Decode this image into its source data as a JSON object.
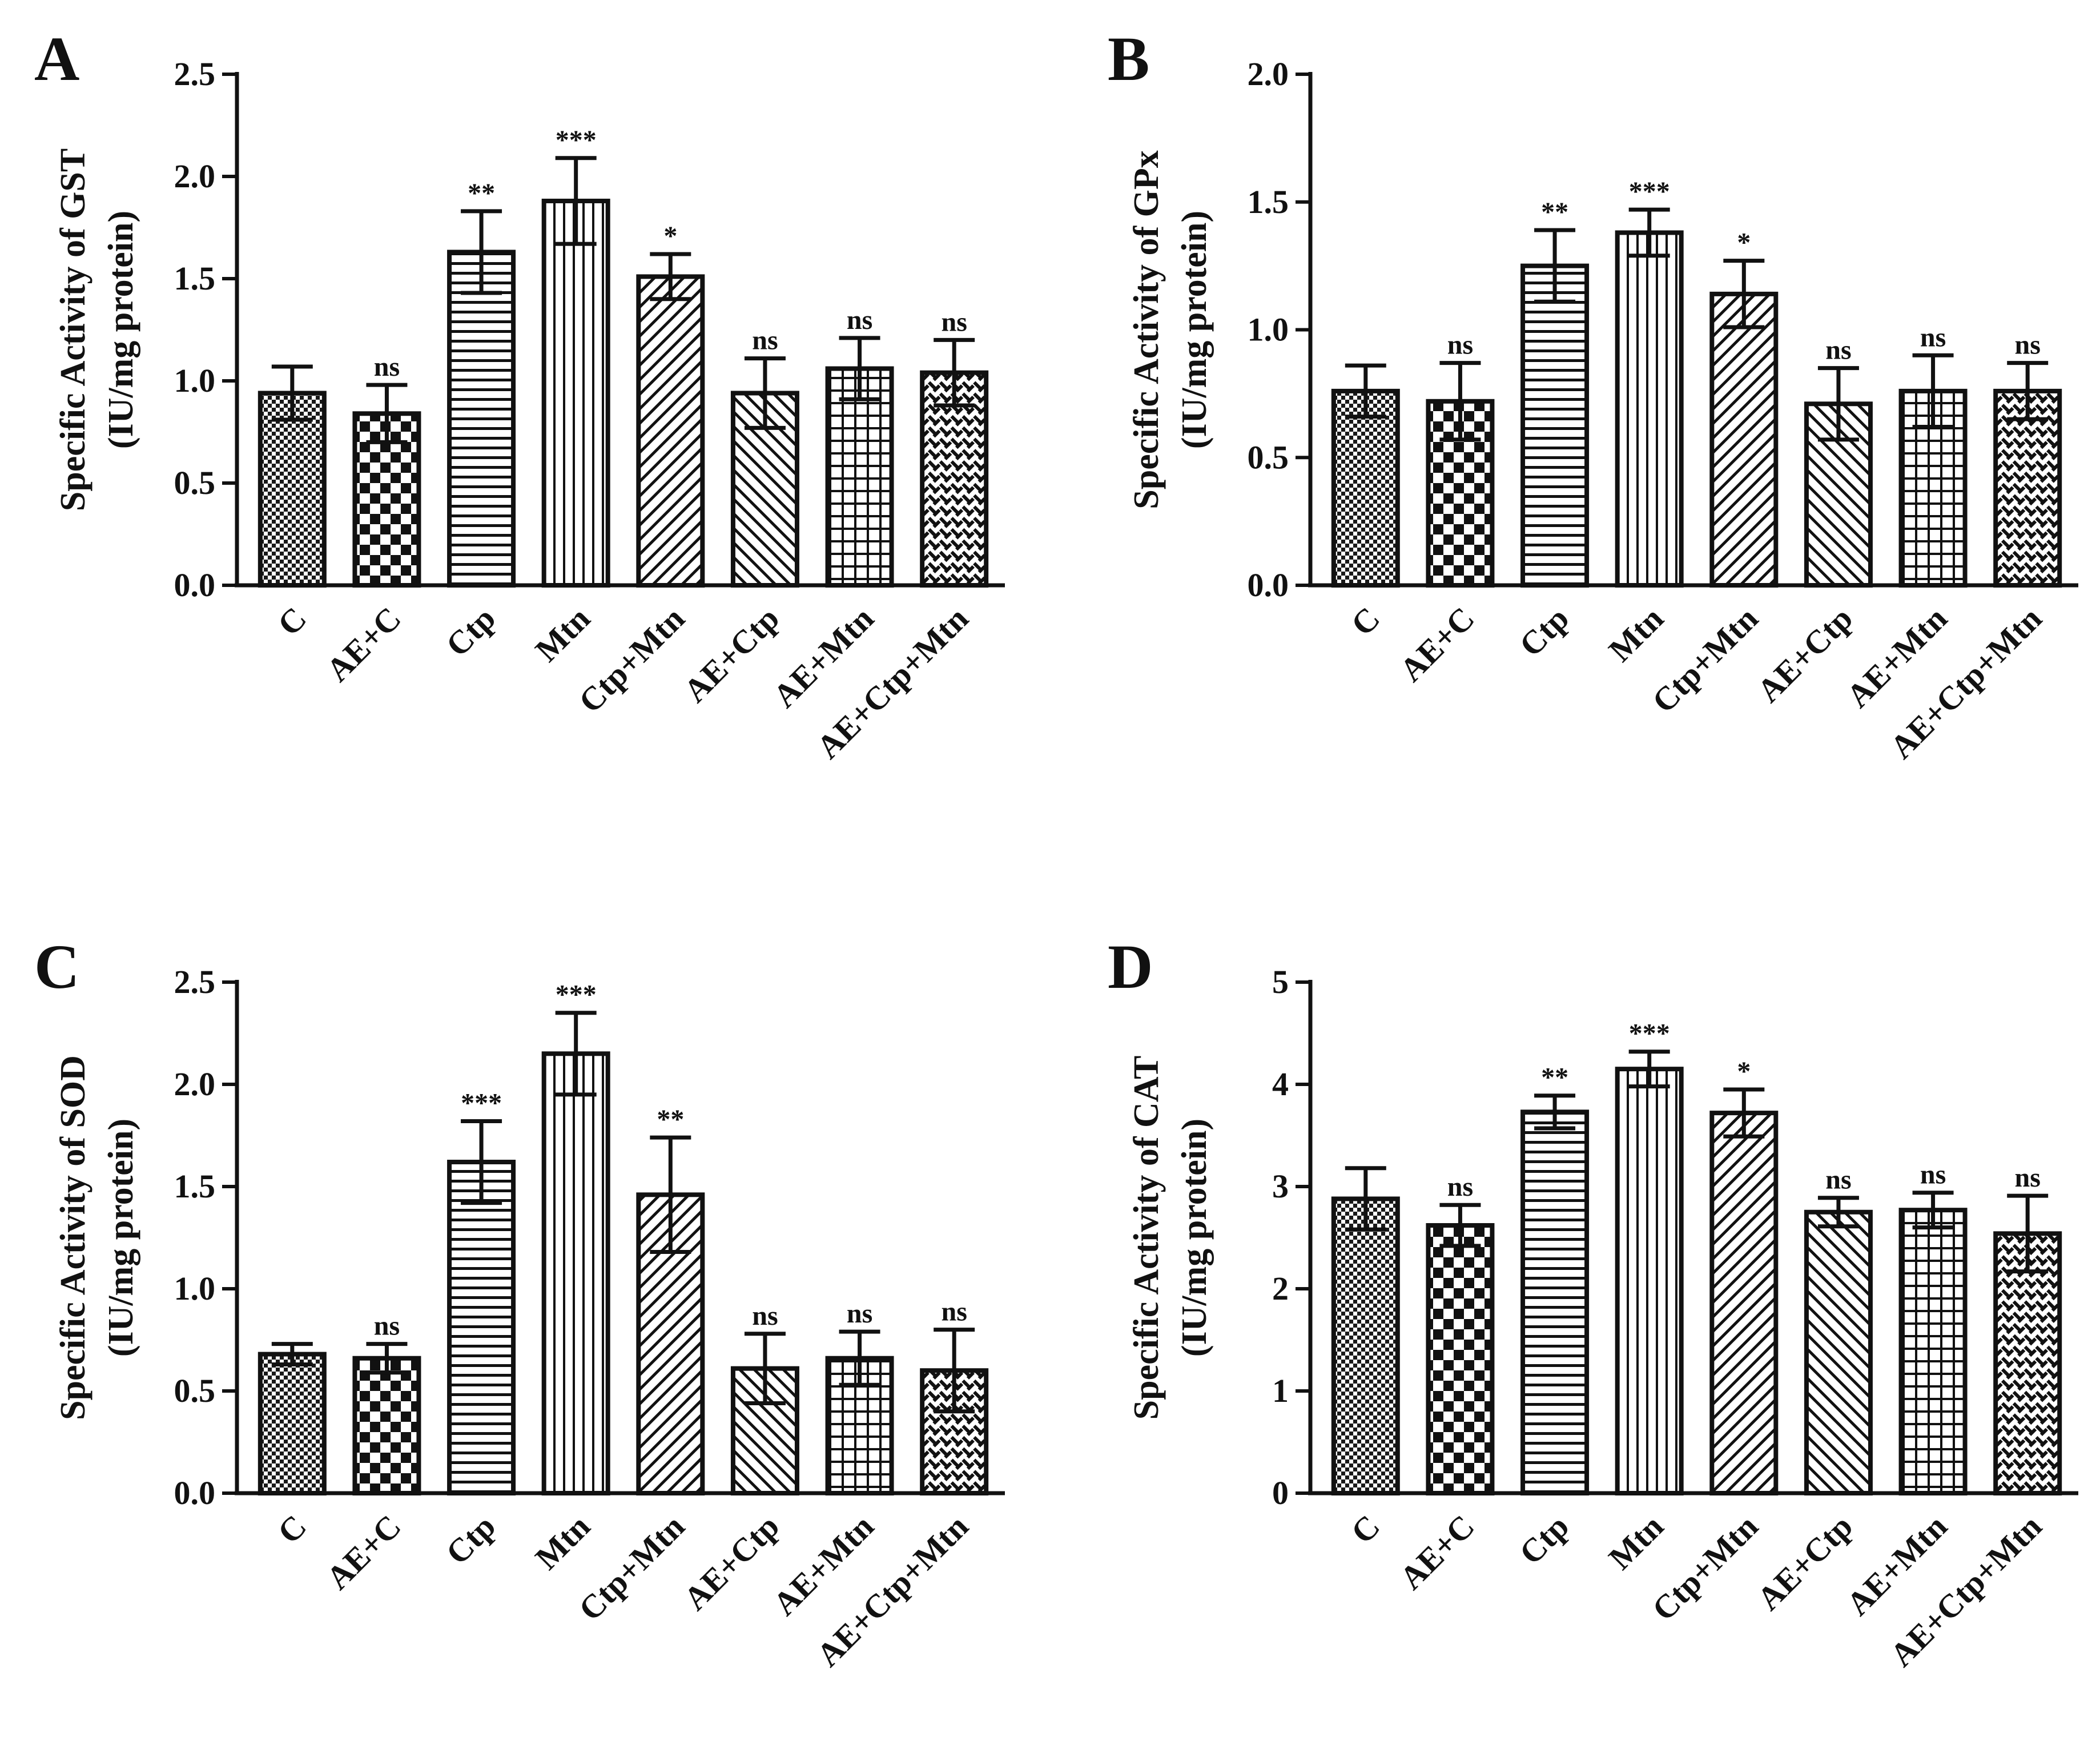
{
  "chart_data": [
    {
      "id": "A",
      "panel_label": "A",
      "type": "bar",
      "ylabel_line1": "Specific Activity of GST",
      "ylabel_line2": "(IU/mg protein)",
      "ylim": [
        0,
        2.5
      ],
      "yticks": [
        "0.0",
        "0.5",
        "1.0",
        "1.5",
        "2.0",
        "2.5"
      ],
      "categories": [
        "C",
        "AE+C",
        "Ctp",
        "Mtn",
        "Ctp+Mtn",
        "AE+Ctp",
        "AE+Mtn",
        "AE+Ctp+Mtn"
      ],
      "patterns": [
        "dots",
        "checker",
        "hlines",
        "vlines",
        "diag",
        "backdiag",
        "grid",
        "weave"
      ],
      "values": [
        0.94,
        0.84,
        1.63,
        1.88,
        1.51,
        0.94,
        1.06,
        1.04
      ],
      "errors": [
        0.13,
        0.14,
        0.2,
        0.21,
        0.11,
        0.17,
        0.15,
        0.16
      ],
      "significance": [
        "",
        "ns",
        "**",
        "***",
        "*",
        "ns",
        "ns",
        "ns"
      ]
    },
    {
      "id": "B",
      "panel_label": "B",
      "type": "bar",
      "ylabel_line1": "Specific Activity of GPx",
      "ylabel_line2": "(IU/mg protein)",
      "ylim": [
        0,
        2.0
      ],
      "yticks": [
        "0.0",
        "0.5",
        "1.0",
        "1.5",
        "2.0"
      ],
      "categories": [
        "C",
        "AE+C",
        "Ctp",
        "Mtn",
        "Ctp+Mtn",
        "AE+Ctp",
        "AE+Mtn",
        "AE+Ctp+Mtn"
      ],
      "patterns": [
        "dots",
        "checker",
        "hlines",
        "vlines",
        "diag",
        "backdiag",
        "grid",
        "weave"
      ],
      "values": [
        0.76,
        0.72,
        1.25,
        1.38,
        1.14,
        0.71,
        0.76,
        0.76
      ],
      "errors": [
        0.1,
        0.15,
        0.14,
        0.09,
        0.13,
        0.14,
        0.14,
        0.11
      ],
      "significance": [
        "",
        "ns",
        "**",
        "***",
        "*",
        "ns",
        "ns",
        "ns"
      ]
    },
    {
      "id": "C",
      "panel_label": "C",
      "type": "bar",
      "ylabel_line1": "Specific Activity of SOD",
      "ylabel_line2": "(IU/mg protein)",
      "ylim": [
        0,
        2.5
      ],
      "yticks": [
        "0.0",
        "0.5",
        "1.0",
        "1.5",
        "2.0",
        "2.5"
      ],
      "categories": [
        "C",
        "AE+C",
        "Ctp",
        "Mtn",
        "Ctp+Mtn",
        "AE+Ctp",
        "AE+Mtn",
        "AE+Ctp+Mtn"
      ],
      "patterns": [
        "dots",
        "checker",
        "hlines",
        "vlines",
        "diag",
        "backdiag",
        "grid",
        "weave"
      ],
      "values": [
        0.68,
        0.66,
        1.62,
        2.15,
        1.46,
        0.61,
        0.66,
        0.6
      ],
      "errors": [
        0.05,
        0.07,
        0.2,
        0.2,
        0.28,
        0.17,
        0.13,
        0.2
      ],
      "significance": [
        "",
        "ns",
        "***",
        "***",
        "**",
        "ns",
        "ns",
        "ns"
      ]
    },
    {
      "id": "D",
      "panel_label": "D",
      "type": "bar",
      "ylabel_line1": "Specific Activity of CAT",
      "ylabel_line2": "(IU/mg protein)",
      "ylim": [
        0,
        5
      ],
      "yticks": [
        "0",
        "1",
        "2",
        "3",
        "4",
        "5"
      ],
      "categories": [
        "C",
        "AE+C",
        "Ctp",
        "Mtn",
        "Ctp+Mtn",
        "AE+Ctp",
        "AE+Mtn",
        "AE+Ctp+Mtn"
      ],
      "patterns": [
        "dots",
        "checker",
        "hlines",
        "vlines",
        "diag",
        "backdiag",
        "grid",
        "weave"
      ],
      "values": [
        2.88,
        2.62,
        3.73,
        4.15,
        3.72,
        2.75,
        2.77,
        2.54
      ],
      "errors": [
        0.3,
        0.2,
        0.16,
        0.17,
        0.23,
        0.14,
        0.17,
        0.37
      ],
      "significance": [
        "",
        "ns",
        "**",
        "***",
        "*",
        "ns",
        "ns",
        "ns"
      ]
    }
  ]
}
